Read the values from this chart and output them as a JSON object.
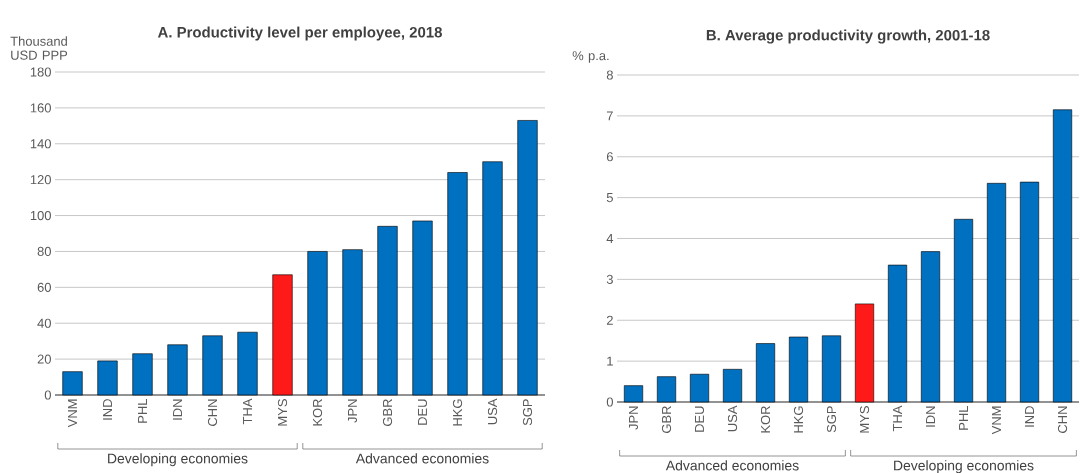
{
  "chart_data": [
    {
      "type": "bar",
      "title": "A. Productivity level per employee, 2018",
      "ylabel": "Thousand USD PPP",
      "categories": [
        "VNM",
        "IND",
        "PHL",
        "IDN",
        "CHN",
        "THA",
        "MYS",
        "KOR",
        "JPN",
        "GBR",
        "DEU",
        "HKG",
        "USA",
        "SGP"
      ],
      "values": [
        13,
        19,
        23,
        28,
        33,
        35,
        67,
        80,
        81,
        94,
        97,
        124,
        130,
        153
      ],
      "colors": [
        "#0070c0",
        "#0070c0",
        "#0070c0",
        "#0070c0",
        "#0070c0",
        "#0070c0",
        "#ff1a1a",
        "#0070c0",
        "#0070c0",
        "#0070c0",
        "#0070c0",
        "#0070c0",
        "#0070c0",
        "#0070c0"
      ],
      "ylim": [
        0,
        180
      ],
      "yticks": [
        0,
        20,
        40,
        60,
        80,
        100,
        120,
        140,
        160,
        180
      ],
      "grid": "y",
      "annotations": [
        "Developing economies",
        "Advanced economies"
      ]
    },
    {
      "type": "bar",
      "title": "B. Average productivity growth, 2001-18",
      "ylabel": "% p.a.",
      "categories": [
        "JPN",
        "GBR",
        "DEU",
        "USA",
        "KOR",
        "HKG",
        "SGP",
        "MYS",
        "THA",
        "IDN",
        "PHL",
        "VNM",
        "IND",
        "CHN"
      ],
      "values": [
        0.4,
        0.62,
        0.68,
        0.8,
        1.43,
        1.59,
        1.62,
        2.4,
        3.35,
        3.68,
        4.47,
        5.35,
        5.38,
        7.15
      ],
      "colors": [
        "#0070c0",
        "#0070c0",
        "#0070c0",
        "#0070c0",
        "#0070c0",
        "#0070c0",
        "#0070c0",
        "#ff1a1a",
        "#0070c0",
        "#0070c0",
        "#0070c0",
        "#0070c0",
        "#0070c0",
        "#0070c0"
      ],
      "ylim": [
        0,
        8
      ],
      "yticks": [
        0,
        1,
        2,
        3,
        4,
        5,
        6,
        7,
        8
      ],
      "grid": "y",
      "annotations": [
        "Advanced economies",
        "Developing economies"
      ]
    }
  ]
}
